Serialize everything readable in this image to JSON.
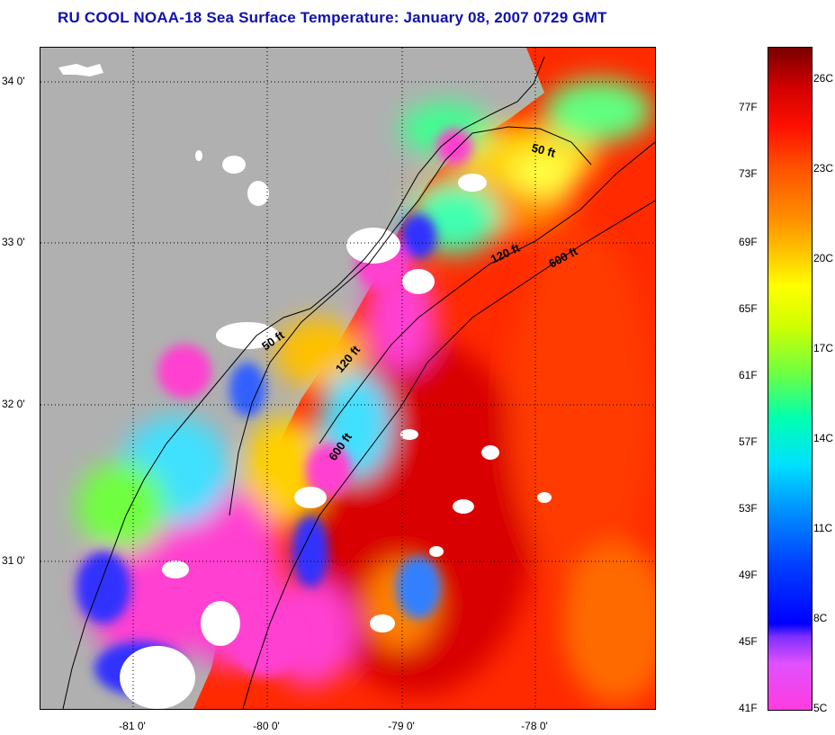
{
  "title": "RU COOL  NOAA-18  Sea Surface Temperature:  January 08, 2007 0729 GMT",
  "map": {
    "lat_labels": [
      "34 0'",
      "33 0'",
      "32 0'",
      "31 0'"
    ],
    "lon_labels": [
      "-81 0'",
      "-80 0'",
      "-79 0'",
      "-78 0'"
    ],
    "isobath_labels": [
      "50 ft",
      "120 ft",
      "600 ft",
      "50 ft",
      "120 ft",
      "600 ft"
    ],
    "colors": {
      "land": "#b0b0b0",
      "cloud": "#ffffff",
      "coastline": "#000000",
      "grid": "#000000"
    }
  },
  "colorbar": {
    "fahrenheit_labels": [
      "77F",
      "73F",
      "69F",
      "65F",
      "61F",
      "57F",
      "53F",
      "49F",
      "45F",
      "41F"
    ],
    "celsius_labels": [
      "26C",
      "23C",
      "20C",
      "17C",
      "14C",
      "11C",
      "8C",
      "5C"
    ],
    "min_c": 5,
    "max_c": 27
  }
}
